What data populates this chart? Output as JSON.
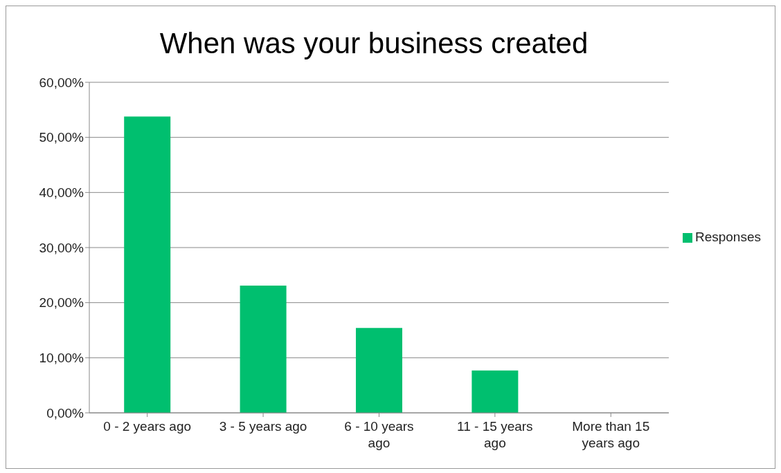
{
  "chart_data": {
    "type": "bar",
    "title": "When was your business created",
    "categories": [
      "0 - 2 years ago",
      "3 - 5 years ago",
      "6 - 10 years ago",
      "11 - 15 years ago",
      "More than 15 years ago"
    ],
    "series": [
      {
        "name": "Responses",
        "color": "#00bf6f",
        "values": [
          53.8,
          23.1,
          15.4,
          7.7,
          0
        ]
      }
    ],
    "ylim": [
      0,
      60
    ],
    "yticks": [
      {
        "value": 0,
        "label": "0,00%"
      },
      {
        "value": 10,
        "label": "10,00%"
      },
      {
        "value": 20,
        "label": "20,00%"
      },
      {
        "value": 30,
        "label": "30,00%"
      },
      {
        "value": 40,
        "label": "40,00%"
      },
      {
        "value": 50,
        "label": "50,00%"
      },
      {
        "value": 60,
        "label": "60,00%"
      }
    ],
    "grid": "y",
    "legend": "right"
  }
}
